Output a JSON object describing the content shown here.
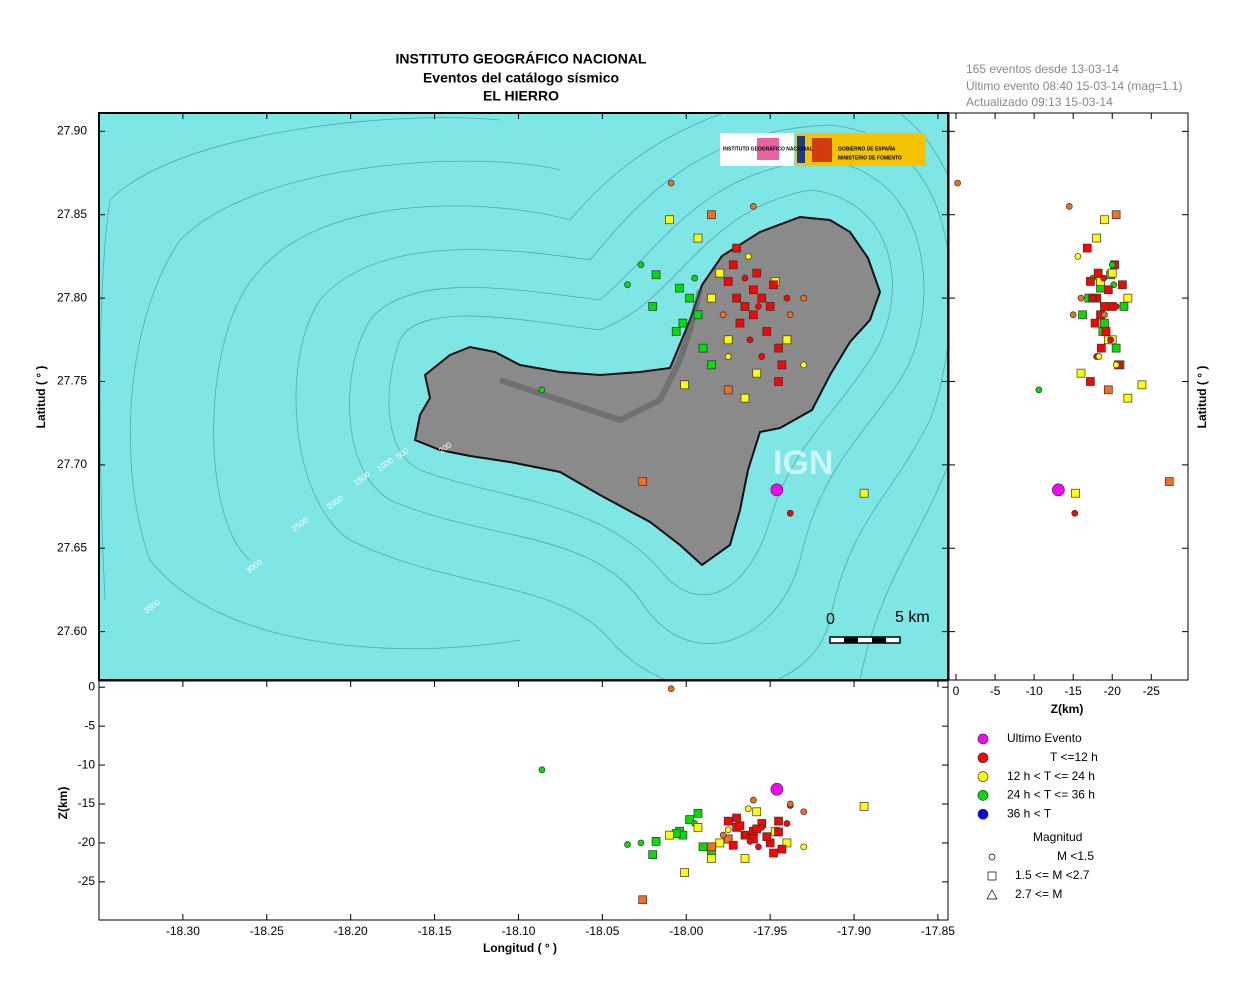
{
  "chart_data": {
    "type": "scatter",
    "title": [
      "INSTITUTO GEOGRÁFICO NACIONAL",
      "Eventos del catálogo sísmico",
      "EL HIERRO"
    ],
    "info": [
      "165 eventos desde 13-03-14",
      "Último evento 08:40 15-03-14  (mag=1.1)",
      "Actualizado  09:13  15-03-14"
    ],
    "xlabel": "Longitud ( ° )",
    "ylabel": "Latitud ( ° )",
    "zlabel": "Z(km)",
    "xlim": [
      -18.35,
      -17.844
    ],
    "ylim": [
      27.571,
      27.911
    ],
    "zlim": [
      -29.9,
      0.8
    ],
    "z2lim": [
      0.9,
      -29.7
    ],
    "xticks": [
      {
        "value": -18.3,
        "label": "-18.30"
      },
      -18.25,
      {
        "value": -18.2,
        "label": "-18.20"
      },
      -18.15,
      {
        "value": -18.1,
        "label": "-18.10"
      },
      -18.05,
      {
        "value": -18.0,
        "label": "-18.00"
      },
      -17.95,
      {
        "value": -17.9,
        "label": "-17.90"
      },
      -17.85
    ],
    "yticks": [
      {
        "value": 27.9,
        "label": "27.90"
      },
      27.85,
      {
        "value": 27.8,
        "label": "27.80"
      },
      27.75,
      {
        "value": 27.7,
        "label": "27.70"
      },
      27.65,
      {
        "value": 27.6,
        "label": "27.60"
      }
    ],
    "zticks": [
      0,
      -5,
      -10,
      -15,
      -20,
      -25
    ],
    "scale_bar": [
      "0",
      "5 km"
    ],
    "watermark": "IGN",
    "logos": [
      "INSTITUTO GEOGRÁFICO NACIONAL",
      "GOBIERNO DE ESPAÑA",
      "MINISTERIO DE FOMENTO"
    ],
    "contour_labels": [
      "200",
      "500",
      "1000",
      "1500",
      "2000",
      "2500",
      "3000",
      "3500"
    ],
    "legend": {
      "time": [
        {
          "label": "Ultimo Evento",
          "color": "#ff00ff"
        },
        {
          "label": "T <=12 h",
          "color": "#ff0000"
        },
        {
          "label": "12 h  < T <= 24 h",
          "color": "#ffff00"
        },
        {
          "label": "24 h  < T <= 36 h",
          "color": "#00dd00"
        },
        {
          "label": "36 h <  T",
          "color": "#0000ff"
        }
      ],
      "title": "Magnitud",
      "magnitude": [
        {
          "label": "M <1.5",
          "shape": "circle"
        },
        {
          "label": "1.5 <= M <2.7",
          "shape": "square"
        },
        {
          "label": "2.7 <= M",
          "shape": "triangle"
        }
      ]
    },
    "events": [
      {
        "lon": -17.946,
        "lat": 27.685,
        "z": -13.1,
        "color": "#ff00ff",
        "shape": "big"
      },
      {
        "lon": -18.009,
        "lat": 27.869,
        "z": -0.2,
        "color": "#f07020",
        "shape": "circle"
      },
      {
        "lon": -18.086,
        "lat": 27.745,
        "z": -10.6,
        "color": "#00dd00",
        "shape": "circle"
      },
      {
        "lon": -17.894,
        "lat": 27.683,
        "z": -15.3,
        "color": "#ffff00",
        "shape": "square"
      },
      {
        "lon": -17.938,
        "lat": 27.671,
        "z": -15.2,
        "color": "#ff0000",
        "shape": "circle"
      },
      {
        "lon": -18.026,
        "lat": 27.69,
        "z": -27.3,
        "color": "#f07020",
        "shape": "square"
      },
      {
        "lon": -18.001,
        "lat": 27.748,
        "z": -23.8,
        "color": "#ffff00",
        "shape": "square"
      },
      {
        "lon": -18.035,
        "lat": 27.808,
        "z": -20.2,
        "color": "#00dd00",
        "shape": "circle"
      },
      {
        "lon": -18.018,
        "lat": 27.814,
        "z": -19.8,
        "color": "#00dd00",
        "shape": "square"
      },
      {
        "lon": -18.004,
        "lat": 27.806,
        "z": -18.5,
        "color": "#00dd00",
        "shape": "square"
      },
      {
        "lon": -17.998,
        "lat": 27.8,
        "z": -17.0,
        "color": "#00dd00",
        "shape": "square"
      },
      {
        "lon": -18.002,
        "lat": 27.785,
        "z": -19.0,
        "color": "#00dd00",
        "shape": "square"
      },
      {
        "lon": -18.006,
        "lat": 27.78,
        "z": -18.8,
        "color": "#00dd00",
        "shape": "square"
      },
      {
        "lon": -17.993,
        "lat": 27.79,
        "z": -16.2,
        "color": "#00dd00",
        "shape": "square"
      },
      {
        "lon": -17.99,
        "lat": 27.77,
        "z": -20.5,
        "color": "#00dd00",
        "shape": "square"
      },
      {
        "lon": -17.985,
        "lat": 27.76,
        "z": -21.0,
        "color": "#00dd00",
        "shape": "square"
      },
      {
        "lon": -18.02,
        "lat": 27.795,
        "z": -21.5,
        "color": "#00dd00",
        "shape": "square"
      },
      {
        "lon": -17.995,
        "lat": 27.812,
        "z": -17.5,
        "color": "#00dd00",
        "shape": "circle"
      },
      {
        "lon": -18.01,
        "lat": 27.847,
        "z": -19.0,
        "color": "#ffff00",
        "shape": "square"
      },
      {
        "lon": -17.993,
        "lat": 27.836,
        "z": -18.0,
        "color": "#ffff00",
        "shape": "square"
      },
      {
        "lon": -17.98,
        "lat": 27.815,
        "z": -20.0,
        "color": "#ffff00",
        "shape": "square"
      },
      {
        "lon": -17.965,
        "lat": 27.74,
        "z": -22.0,
        "color": "#ffff00",
        "shape": "square"
      },
      {
        "lon": -17.958,
        "lat": 27.755,
        "z": -16.0,
        "color": "#ffff00",
        "shape": "square"
      },
      {
        "lon": -17.975,
        "lat": 27.775,
        "z": -19.5,
        "color": "#ffff00",
        "shape": "square"
      },
      {
        "lon": -17.947,
        "lat": 27.81,
        "z": -18.5,
        "color": "#ffff00",
        "shape": "square"
      },
      {
        "lon": -17.94,
        "lat": 27.775,
        "z": -20.0,
        "color": "#ffff00",
        "shape": "square"
      },
      {
        "lon": -17.963,
        "lat": 27.825,
        "z": -15.6,
        "color": "#ffff00",
        "shape": "circle"
      },
      {
        "lon": -17.985,
        "lat": 27.85,
        "z": -20.5,
        "color": "#f07020",
        "shape": "square"
      },
      {
        "lon": -17.96,
        "lat": 27.855,
        "z": -14.5,
        "color": "#f07020",
        "shape": "circle"
      },
      {
        "lon": -17.93,
        "lat": 27.8,
        "z": -16.0,
        "color": "#f07020",
        "shape": "circle"
      },
      {
        "lon": -17.975,
        "lat": 27.745,
        "z": -19.5,
        "color": "#f07020",
        "shape": "square"
      },
      {
        "lon": -17.938,
        "lat": 27.79,
        "z": -15.0,
        "color": "#f07020",
        "shape": "circle"
      },
      {
        "lon": -17.97,
        "lat": 27.8,
        "z": -18.0,
        "color": "#ff0000",
        "shape": "square"
      },
      {
        "lon": -17.965,
        "lat": 27.795,
        "z": -19.0,
        "color": "#ff0000",
        "shape": "square"
      },
      {
        "lon": -17.96,
        "lat": 27.79,
        "z": -18.5,
        "color": "#ff0000",
        "shape": "square"
      },
      {
        "lon": -17.955,
        "lat": 27.8,
        "z": -17.5,
        "color": "#ff0000",
        "shape": "square"
      },
      {
        "lon": -17.95,
        "lat": 27.795,
        "z": -20.0,
        "color": "#ff0000",
        "shape": "square"
      },
      {
        "lon": -17.96,
        "lat": 27.805,
        "z": -19.5,
        "color": "#ff0000",
        "shape": "square"
      },
      {
        "lon": -17.968,
        "lat": 27.785,
        "z": -17.8,
        "color": "#ff0000",
        "shape": "square"
      },
      {
        "lon": -17.952,
        "lat": 27.78,
        "z": -19.2,
        "color": "#ff0000",
        "shape": "square"
      },
      {
        "lon": -17.945,
        "lat": 27.77,
        "z": -18.6,
        "color": "#ff0000",
        "shape": "square"
      },
      {
        "lon": -17.943,
        "lat": 27.76,
        "z": -20.8,
        "color": "#ff0000",
        "shape": "square"
      },
      {
        "lon": -17.958,
        "lat": 27.815,
        "z": -18.2,
        "color": "#ff0000",
        "shape": "square"
      },
      {
        "lon": -17.972,
        "lat": 27.82,
        "z": -20.3,
        "color": "#ff0000",
        "shape": "square"
      },
      {
        "lon": -17.975,
        "lat": 27.81,
        "z": -17.2,
        "color": "#ff0000",
        "shape": "square"
      },
      {
        "lon": -17.948,
        "lat": 27.808,
        "z": -21.3,
        "color": "#ff0000",
        "shape": "square"
      },
      {
        "lon": -17.962,
        "lat": 27.775,
        "z": -19.8,
        "color": "#ff0000",
        "shape": "circle"
      },
      {
        "lon": -17.955,
        "lat": 27.765,
        "z": -18.0,
        "color": "#ff0000",
        "shape": "circle"
      },
      {
        "lon": -17.94,
        "lat": 27.8,
        "z": -17.5,
        "color": "#ff0000",
        "shape": "circle"
      },
      {
        "lon": -17.97,
        "lat": 27.83,
        "z": -16.8,
        "color": "#ff0000",
        "shape": "square"
      },
      {
        "lon": -17.957,
        "lat": 27.795,
        "z": -20.5,
        "color": "#ff0000",
        "shape": "circle"
      },
      {
        "lon": -17.965,
        "lat": 27.812,
        "z": -18.9,
        "color": "#ff0000",
        "shape": "circle"
      },
      {
        "lon": -17.93,
        "lat": 27.76,
        "z": -20.5,
        "color": "#ffff00",
        "shape": "circle"
      },
      {
        "lon": -18.027,
        "lat": 27.82,
        "z": -20.0,
        "color": "#00dd00",
        "shape": "circle"
      },
      {
        "lon": -17.985,
        "lat": 27.8,
        "z": -22.0,
        "color": "#ffff00",
        "shape": "square"
      },
      {
        "lon": -17.978,
        "lat": 27.79,
        "z": -19.0,
        "color": "#f07020",
        "shape": "circle"
      },
      {
        "lon": -17.945,
        "lat": 27.75,
        "z": -17.2,
        "color": "#ff0000",
        "shape": "square"
      },
      {
        "lon": -17.975,
        "lat": 27.765,
        "z": -18.3,
        "color": "#ffff00",
        "shape": "circle"
      }
    ]
  }
}
